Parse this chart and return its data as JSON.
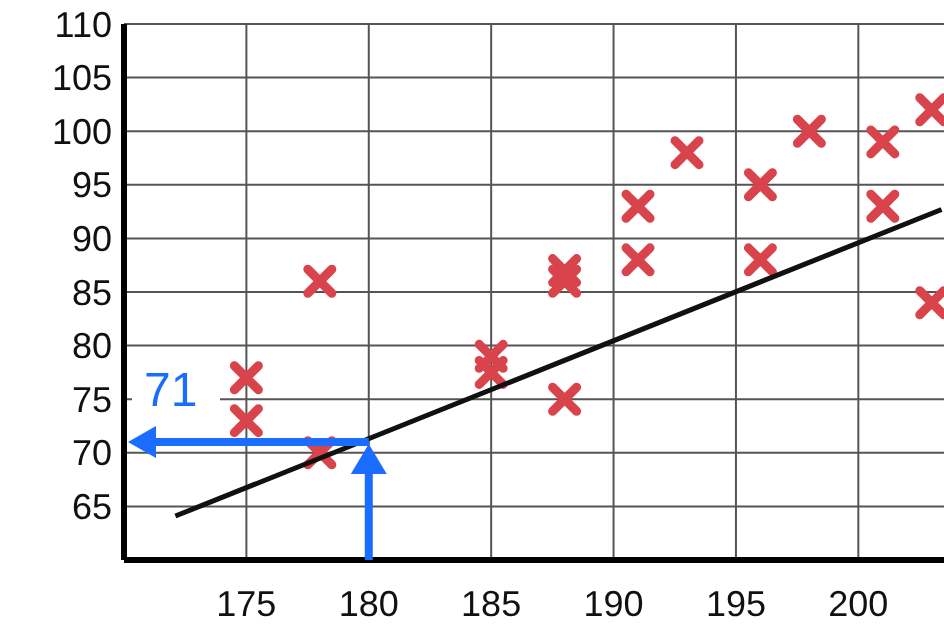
{
  "chart_data": {
    "type": "scatter",
    "marker": "cross",
    "grid": true,
    "xlim": [
      170,
      203.5
    ],
    "ylim": [
      60,
      110
    ],
    "xticks": [
      175,
      180,
      185,
      190,
      195,
      200
    ],
    "yticks": [
      65,
      70,
      75,
      80,
      85,
      90,
      95,
      100,
      105,
      110
    ],
    "x": [
      175,
      175,
      178,
      178,
      185,
      185,
      188,
      188,
      188,
      191,
      191,
      193,
      196,
      196,
      198,
      201,
      201,
      203,
      203
    ],
    "series": [
      {
        "color": "#d9434b",
        "values": [
          77,
          73,
          86,
          70,
          79,
          77.5,
          87,
          86,
          75,
          88,
          93,
          98,
          95,
          88,
          100,
          99,
          93,
          102,
          84
        ]
      },
      {
        "type": "line",
        "color": "#111111",
        "marker": "none",
        "x": [
          172.1,
          203.4
        ],
        "values": [
          64.1,
          92.7
        ]
      }
    ],
    "annotations": [
      {
        "text": "71",
        "x": 180,
        "y": 71
      }
    ]
  }
}
